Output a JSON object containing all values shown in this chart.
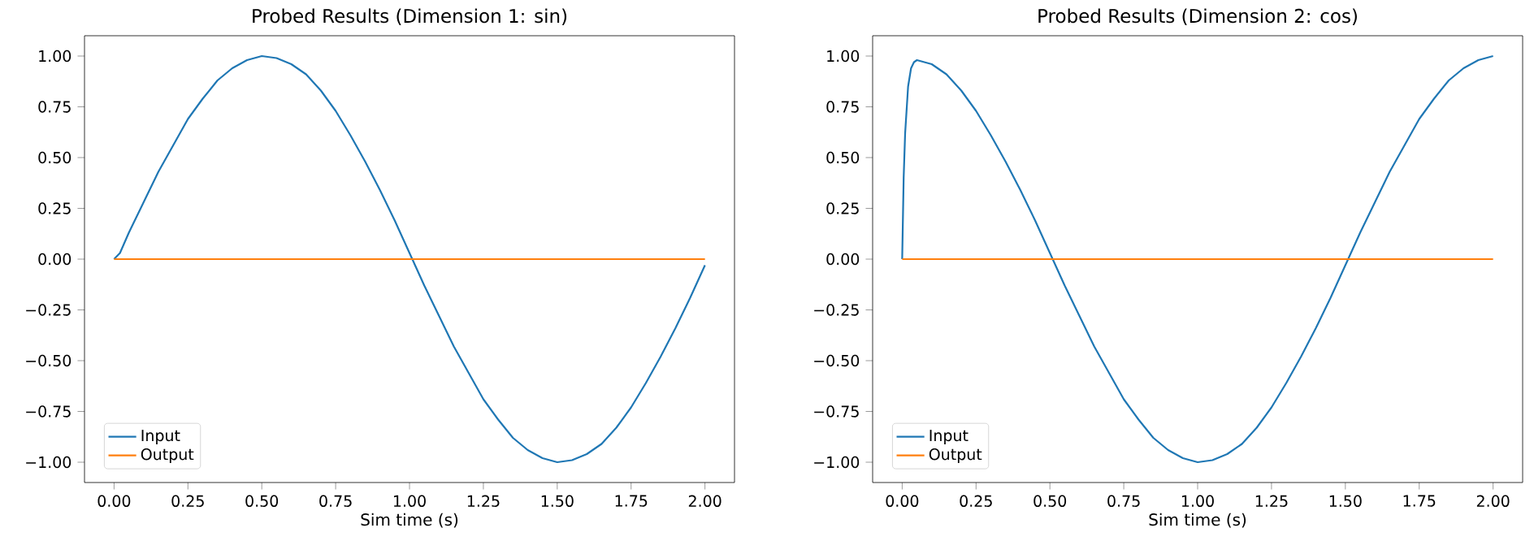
{
  "chart_data": [
    {
      "type": "line",
      "title": "Probed Results (Dimension 1: sin)",
      "xlabel": "Sim time (s)",
      "legend": "bottom left",
      "marker": "none",
      "line_style": "solid",
      "xlim": [
        -0.1,
        2.1
      ],
      "ylim": [
        -1.1,
        1.1
      ],
      "xticks": [
        {
          "value": 0,
          "label": "0.00"
        },
        {
          "value": 0.25,
          "label": "0.25"
        },
        {
          "value": 0.5,
          "label": "0.50"
        },
        {
          "value": 0.75,
          "label": "0.75"
        },
        {
          "value": 1,
          "label": "1.00"
        },
        {
          "value": 1.25,
          "label": "1.25"
        },
        {
          "value": 1.5,
          "label": "1.50"
        },
        {
          "value": 1.75,
          "label": "1.75"
        },
        {
          "value": 2,
          "label": "2.00"
        }
      ],
      "yticks": [
        {
          "value": -1,
          "label": "−1.00"
        },
        {
          "value": -0.75,
          "label": "−0.75"
        },
        {
          "value": -0.5,
          "label": "−0.50"
        },
        {
          "value": -0.25,
          "label": "−0.25"
        },
        {
          "value": 0,
          "label": "0.00"
        },
        {
          "value": 0.25,
          "label": "0.25"
        },
        {
          "value": 0.5,
          "label": "0.50"
        },
        {
          "value": 0.75,
          "label": "0.75"
        },
        {
          "value": 1,
          "label": "1.00"
        }
      ],
      "series": [
        {
          "name": "Input",
          "color": "#1f77b4",
          "x": [
            0,
            0.02,
            0.05,
            0.1,
            0.15,
            0.2,
            0.25,
            0.3,
            0.35,
            0.4,
            0.45,
            0.5,
            0.55,
            0.6,
            0.65,
            0.7,
            0.75,
            0.8,
            0.85,
            0.9,
            0.95,
            1.0,
            1.05,
            1.1,
            1.15,
            1.2,
            1.25,
            1.3,
            1.35,
            1.4,
            1.45,
            1.5,
            1.55,
            1.6,
            1.65,
            1.7,
            1.75,
            1.8,
            1.85,
            1.9,
            1.95,
            2.0
          ],
          "values": [
            0,
            0.03,
            0.13,
            0.28,
            0.43,
            0.56,
            0.69,
            0.79,
            0.88,
            0.94,
            0.98,
            1.0,
            0.99,
            0.96,
            0.91,
            0.83,
            0.73,
            0.61,
            0.48,
            0.34,
            0.19,
            0.03,
            -0.13,
            -0.28,
            -0.43,
            -0.56,
            -0.69,
            -0.79,
            -0.88,
            -0.94,
            -0.98,
            -1.0,
            -0.99,
            -0.96,
            -0.91,
            -0.83,
            -0.73,
            -0.61,
            -0.48,
            -0.34,
            -0.19,
            -0.03
          ]
        },
        {
          "name": "Output",
          "color": "#ff7f0e",
          "x": [
            0,
            2.0
          ],
          "values": [
            0,
            0
          ]
        }
      ]
    },
    {
      "type": "line",
      "title": "Probed Results (Dimension 2: cos)",
      "xlabel": "Sim time (s)",
      "legend": "bottom left",
      "marker": "none",
      "line_style": "solid",
      "xlim": [
        -0.1,
        2.1
      ],
      "ylim": [
        -1.1,
        1.1
      ],
      "xticks": [
        {
          "value": 0,
          "label": "0.00"
        },
        {
          "value": 0.25,
          "label": "0.25"
        },
        {
          "value": 0.5,
          "label": "0.50"
        },
        {
          "value": 0.75,
          "label": "0.75"
        },
        {
          "value": 1,
          "label": "1.00"
        },
        {
          "value": 1.25,
          "label": "1.25"
        },
        {
          "value": 1.5,
          "label": "1.50"
        },
        {
          "value": 1.75,
          "label": "1.75"
        },
        {
          "value": 2,
          "label": "2.00"
        }
      ],
      "yticks": [
        {
          "value": -1,
          "label": "−1.00"
        },
        {
          "value": -0.75,
          "label": "−0.75"
        },
        {
          "value": -0.5,
          "label": "−0.50"
        },
        {
          "value": -0.25,
          "label": "−0.25"
        },
        {
          "value": 0,
          "label": "0.00"
        },
        {
          "value": 0.25,
          "label": "0.25"
        },
        {
          "value": 0.5,
          "label": "0.50"
        },
        {
          "value": 0.75,
          "label": "0.75"
        },
        {
          "value": 1,
          "label": "1.00"
        }
      ],
      "series": [
        {
          "name": "Input",
          "color": "#1f77b4",
          "x": [
            0,
            0.005,
            0.01,
            0.02,
            0.03,
            0.04,
            0.05,
            0.1,
            0.15,
            0.2,
            0.25,
            0.3,
            0.35,
            0.4,
            0.45,
            0.5,
            0.55,
            0.6,
            0.65,
            0.7,
            0.75,
            0.8,
            0.85,
            0.9,
            0.95,
            1.0,
            1.05,
            1.1,
            1.15,
            1.2,
            1.25,
            1.3,
            1.35,
            1.4,
            1.45,
            1.5,
            1.55,
            1.6,
            1.65,
            1.7,
            1.75,
            1.8,
            1.85,
            1.9,
            1.95,
            2.0
          ],
          "values": [
            0,
            0.4,
            0.62,
            0.85,
            0.94,
            0.97,
            0.98,
            0.96,
            0.91,
            0.83,
            0.73,
            0.61,
            0.48,
            0.34,
            0.19,
            0.03,
            -0.13,
            -0.28,
            -0.43,
            -0.56,
            -0.69,
            -0.79,
            -0.88,
            -0.94,
            -0.98,
            -1.0,
            -0.99,
            -0.96,
            -0.91,
            -0.83,
            -0.73,
            -0.61,
            -0.48,
            -0.34,
            -0.19,
            -0.03,
            0.13,
            0.28,
            0.43,
            0.56,
            0.69,
            0.79,
            0.88,
            0.94,
            0.98,
            1.0
          ]
        },
        {
          "name": "Output",
          "color": "#ff7f0e",
          "x": [
            0,
            2.0
          ],
          "values": [
            0,
            0
          ]
        }
      ]
    }
  ]
}
